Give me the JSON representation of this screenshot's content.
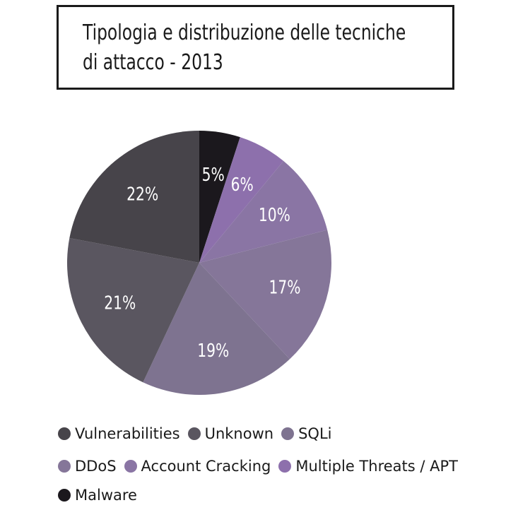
{
  "title": {
    "line1": "Tipologia e distribuzione delle tecniche",
    "line2": "di attacco - 2013"
  },
  "chart_data": {
    "type": "pie",
    "slices": [
      {
        "name": "Malware",
        "value": 5,
        "label": "5%",
        "color": "#1b181d"
      },
      {
        "name": "Multiple Threats / APT",
        "value": 6,
        "label": "6%",
        "color": "#8d70ac"
      },
      {
        "name": "Account Cracking",
        "value": 10,
        "label": "10%",
        "color": "#8a75a4"
      },
      {
        "name": "DDoS",
        "value": 17,
        "label": "17%",
        "color": "#857699"
      },
      {
        "name": "SQLi",
        "value": 19,
        "label": "19%",
        "color": "#7e7390"
      },
      {
        "name": "Unknown",
        "value": 21,
        "label": "21%",
        "color": "#5a5660"
      },
      {
        "name": "Vulnerabilities",
        "value": 22,
        "label": "22%",
        "color": "#47444a"
      }
    ],
    "start": "12 o'clock",
    "direction": "clockwise"
  },
  "legend": {
    "rows": [
      [
        "Vulnerabilities",
        "Unknown",
        "SQLi"
      ],
      [
        "DDoS",
        "Account Cracking",
        "Multiple Threats / APT"
      ],
      [
        "Malware"
      ]
    ]
  }
}
